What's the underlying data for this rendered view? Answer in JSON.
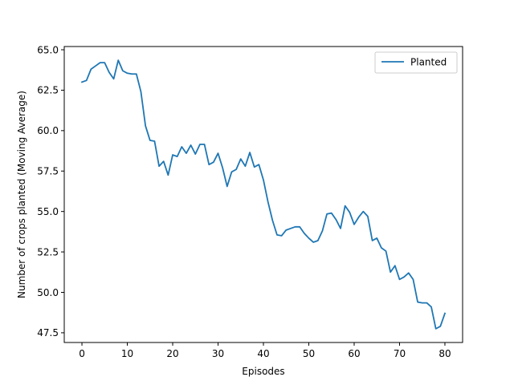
{
  "chart_data": {
    "type": "line",
    "title": "",
    "xlabel": "Episodes",
    "ylabel": "Number of crops planted (Moving Average)",
    "xlim": [
      -3.9,
      83.9
    ],
    "ylim": [
      46.9,
      65.2
    ],
    "xticks": [
      0,
      10,
      20,
      30,
      40,
      50,
      60,
      70,
      80
    ],
    "yticks": [
      47.5,
      50.0,
      52.5,
      55.0,
      57.5,
      60.0,
      62.5,
      65.0
    ],
    "xtick_labels": [
      "0",
      "10",
      "20",
      "30",
      "40",
      "50",
      "60",
      "70",
      "80"
    ],
    "ytick_labels": [
      "47.5",
      "50.0",
      "52.5",
      "55.0",
      "57.5",
      "60.0",
      "62.5",
      "65.0"
    ],
    "grid": false,
    "legend_position": "top-right",
    "series": [
      {
        "name": "Planted",
        "color": "#1f77b4",
        "x": [
          0,
          1,
          2,
          3,
          4,
          5,
          6,
          7,
          8,
          9,
          10,
          11,
          12,
          13,
          14,
          15,
          16,
          17,
          18,
          19,
          20,
          21,
          22,
          23,
          24,
          25,
          26,
          27,
          28,
          29,
          30,
          31,
          32,
          33,
          34,
          35,
          36,
          37,
          38,
          39,
          40,
          41,
          42,
          43,
          44,
          45,
          46,
          47,
          48,
          49,
          50,
          51,
          52,
          53,
          54,
          55,
          56,
          57,
          58,
          59,
          60,
          61,
          62,
          63,
          64,
          65,
          66,
          67,
          68,
          69,
          70,
          71,
          72,
          73,
          74,
          75,
          76,
          77,
          78,
          79,
          80
        ],
        "values": [
          63.0,
          63.1,
          63.8,
          64.0,
          64.2,
          64.2,
          63.6,
          63.2,
          64.35,
          63.7,
          63.55,
          63.5,
          63.5,
          62.4,
          60.3,
          59.4,
          59.35,
          57.8,
          58.1,
          57.25,
          58.5,
          58.4,
          59.0,
          58.6,
          59.1,
          58.55,
          59.15,
          59.15,
          57.9,
          58.05,
          58.6,
          57.7,
          56.55,
          57.45,
          57.6,
          58.25,
          57.8,
          58.65,
          57.75,
          57.9,
          56.95,
          55.6,
          54.45,
          53.55,
          53.5,
          53.85,
          53.95,
          54.05,
          54.05,
          53.65,
          53.35,
          53.1,
          53.2,
          53.8,
          54.85,
          54.9,
          54.5,
          53.95,
          55.35,
          54.95,
          54.2,
          54.65,
          55.0,
          54.7,
          53.2,
          53.35,
          52.75,
          52.55,
          51.25,
          51.65,
          50.8,
          50.95,
          51.2,
          50.8,
          49.4,
          49.35,
          49.35,
          49.1,
          47.75,
          47.9,
          48.7
        ]
      }
    ]
  }
}
